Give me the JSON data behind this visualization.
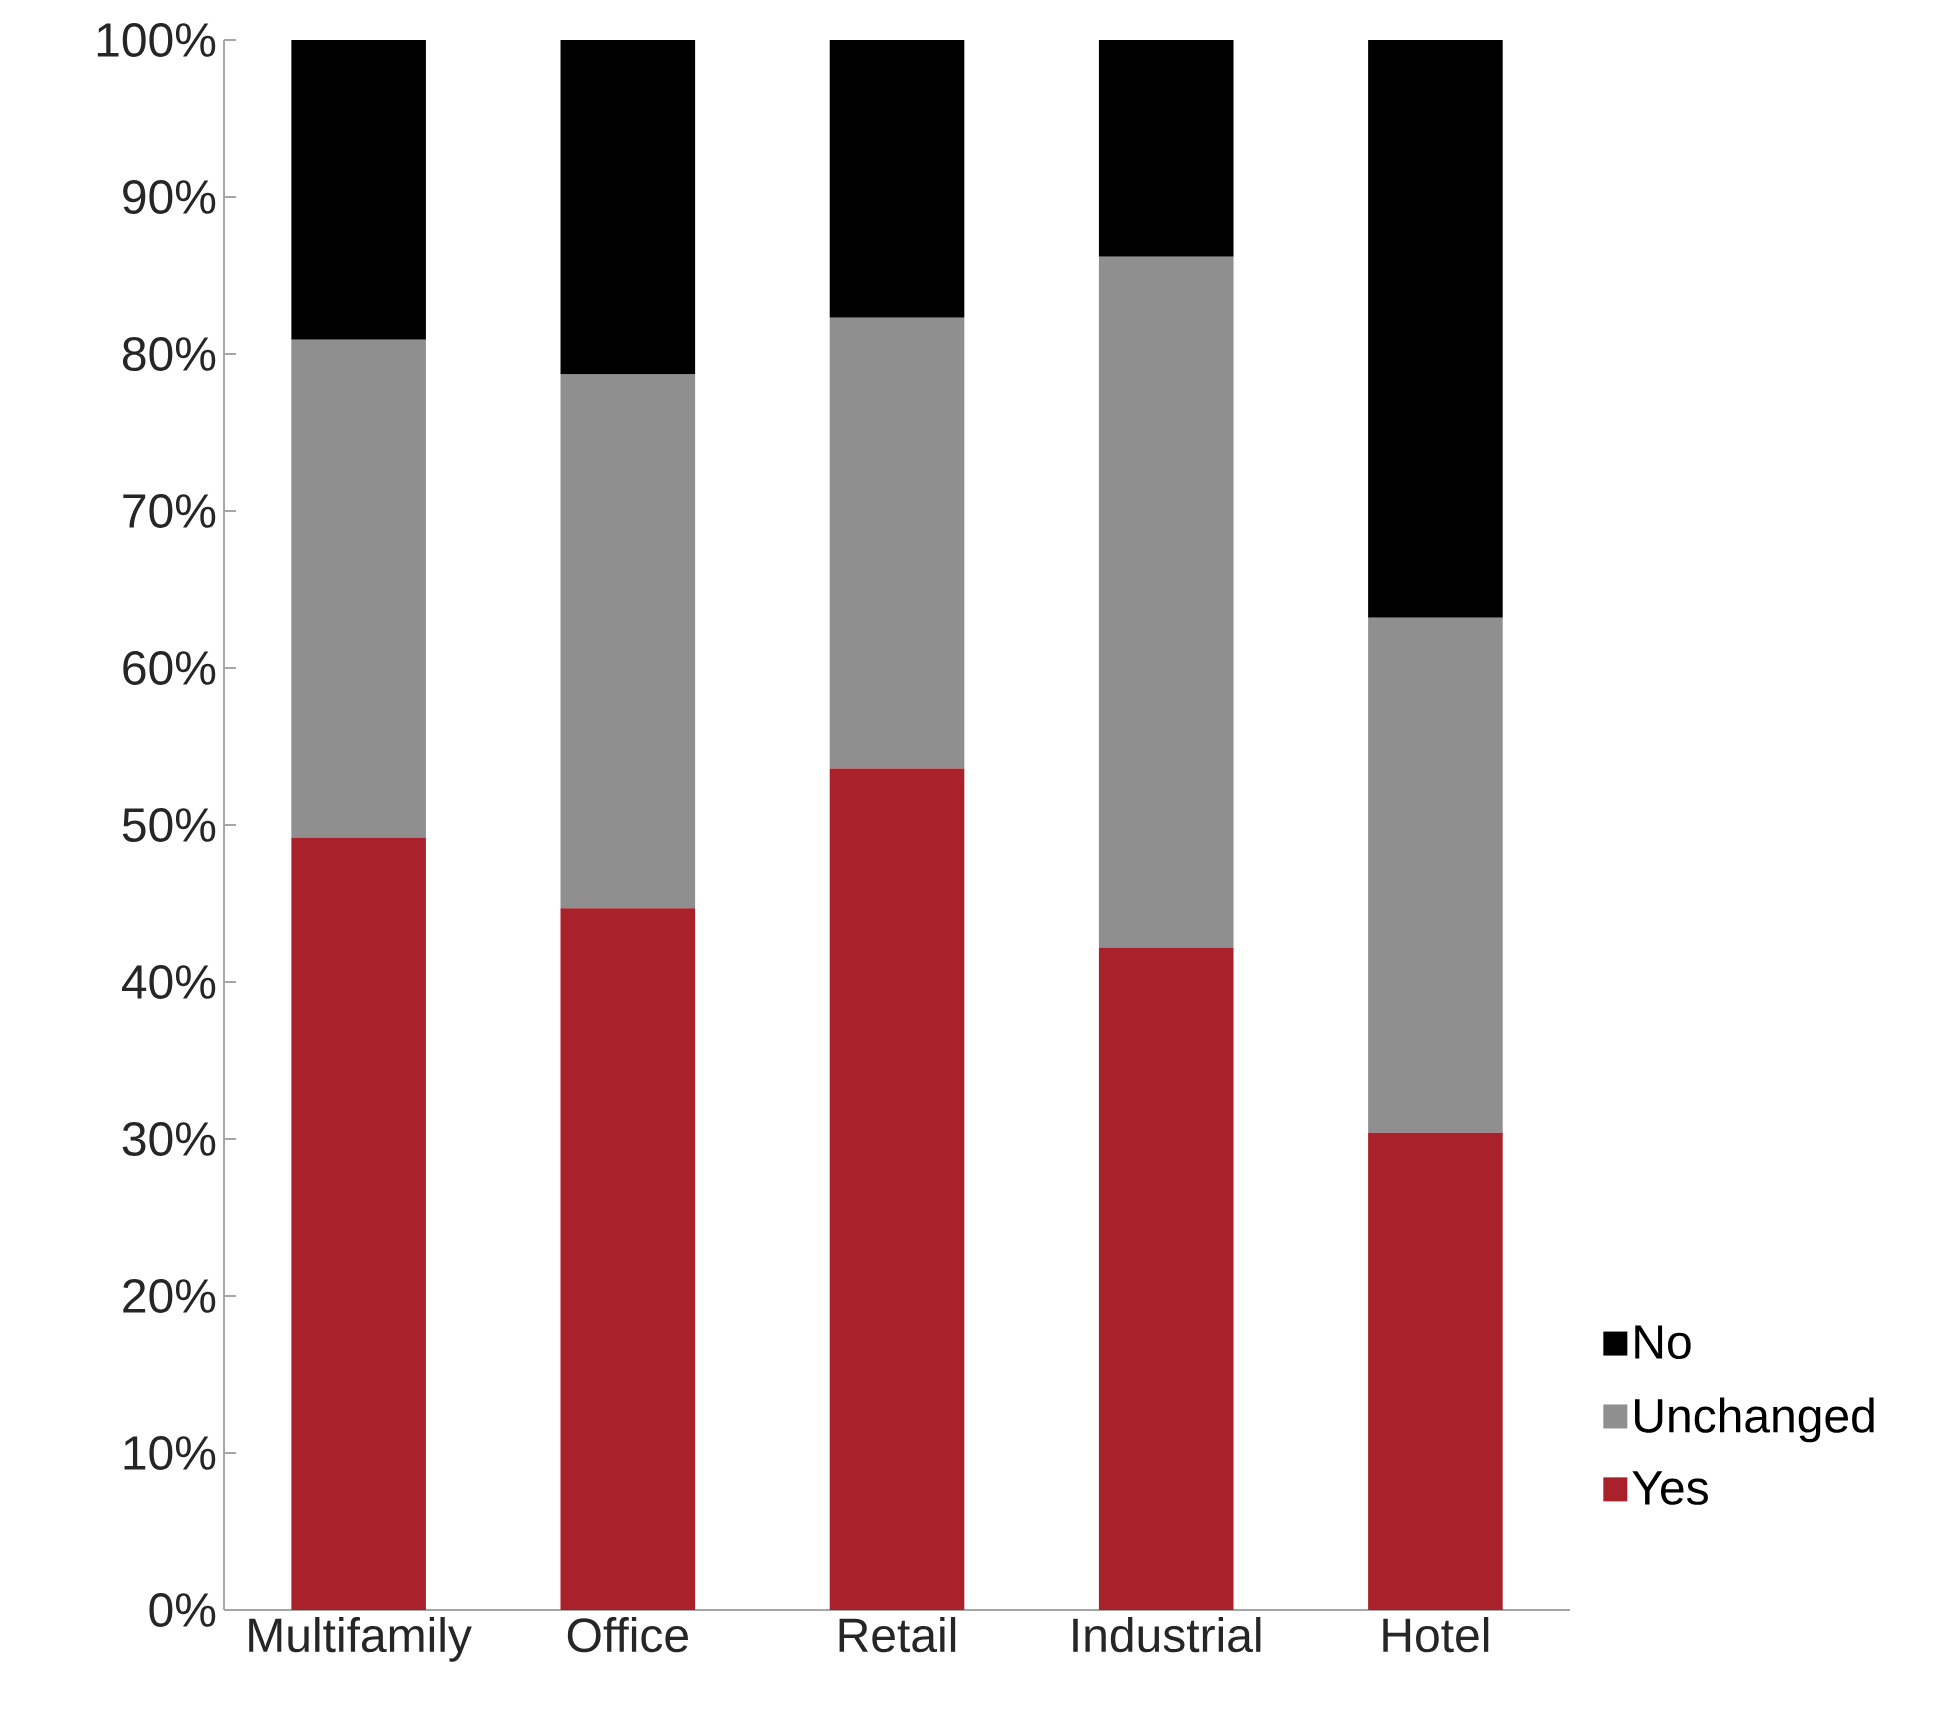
{
  "chart_data": {
    "type": "bar",
    "stacked": true,
    "categories": [
      "Multifamily",
      "Office",
      "Retail",
      "Industrial",
      "Hotel"
    ],
    "series": [
      {
        "name": "Yes",
        "color": "#a8212b",
        "values": [
          49.2,
          44.7,
          53.6,
          42.2,
          30.4
        ]
      },
      {
        "name": "Unchanged",
        "color": "#8f8f8f",
        "values": [
          31.7,
          34.0,
          28.7,
          44.0,
          32.8
        ]
      },
      {
        "name": "No",
        "color": "#000000",
        "values": [
          19.1,
          21.3,
          17.7,
          13.8,
          36.8
        ]
      }
    ],
    "ylim": [
      0,
      100
    ],
    "yticks": [
      {
        "value": 0,
        "label": "0%"
      },
      {
        "value": 10,
        "label": "10%"
      },
      {
        "value": 20,
        "label": "20%"
      },
      {
        "value": 30,
        "label": "30%"
      },
      {
        "value": 40,
        "label": "40%"
      },
      {
        "value": 50,
        "label": "50%"
      },
      {
        "value": 60,
        "label": "60%"
      },
      {
        "value": 70,
        "label": "70%"
      },
      {
        "value": 80,
        "label": "80%"
      },
      {
        "value": 90,
        "label": "90%"
      },
      {
        "value": 100,
        "label": "100%"
      }
    ],
    "legend": "bottom right",
    "grid": false
  }
}
